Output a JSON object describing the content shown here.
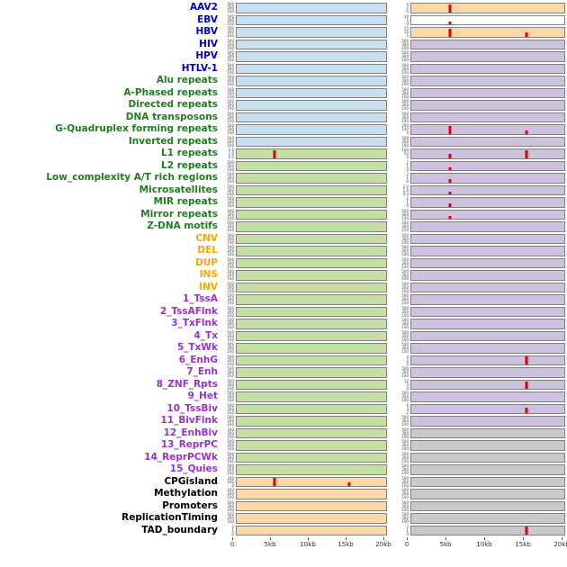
{
  "chart_data": {
    "type": "multitrack-density",
    "description": "Two columns of per-annotation signal tracks over a 0-20kb genomic window; red spikes mark enrichment peaks",
    "x_ticks": [
      "0",
      "5kb",
      "10kb",
      "15kb",
      "20kb"
    ],
    "x_max_kb": 20,
    "default_yticks": [
      "500",
      "300",
      "100"
    ],
    "colors": {
      "spike": "#e00000",
      "bg": {
        "blue": "#c7dfee",
        "green": "#c3dfa3",
        "orange": "#fcd8a8",
        "purple": "#cdc1de",
        "gray": "#c9c9c9",
        "white": "#ffffff"
      },
      "label": {
        "blue": "#0000cc",
        "green": "#1e7d1e",
        "orange": "#ffa500",
        "purple": "#9932cc",
        "black": "#000000"
      }
    },
    "tracks": [
      {
        "label": "AAV2",
        "lc": "blue",
        "left": {
          "bg": "blue"
        },
        "right": {
          "bg": "orange",
          "yticks": [
            "4",
            "2",
            "0"
          ],
          "spikes": [
            {
              "kb": 5,
              "h": 0.92
            }
          ]
        }
      },
      {
        "label": "EBV",
        "lc": "blue",
        "left": {
          "bg": "blue"
        },
        "right": {
          "bg": "white",
          "yticks": [
            "10",
            "5",
            "0"
          ],
          "spikes": [
            {
              "kb": 5,
              "h": 0.3
            }
          ]
        }
      },
      {
        "label": "HBV",
        "lc": "blue",
        "left": {
          "bg": "blue"
        },
        "right": {
          "bg": "orange",
          "yticks": [
            "15",
            "10",
            "5"
          ],
          "spikes": [
            {
              "kb": 5,
              "h": 0.92
            },
            {
              "kb": 15,
              "h": 0.5
            }
          ]
        }
      },
      {
        "label": "HIV",
        "lc": "blue",
        "left": {
          "bg": "blue"
        },
        "right": {
          "bg": "purple"
        }
      },
      {
        "label": "HPV",
        "lc": "blue",
        "left": {
          "bg": "blue"
        },
        "right": {
          "bg": "purple"
        }
      },
      {
        "label": "HTLV-1",
        "lc": "blue",
        "left": {
          "bg": "blue"
        },
        "right": {
          "bg": "purple"
        }
      },
      {
        "label": "Alu repeats",
        "lc": "green",
        "left": {
          "bg": "blue"
        },
        "right": {
          "bg": "purple"
        }
      },
      {
        "label": "A-Phased repeats",
        "lc": "green",
        "left": {
          "bg": "blue"
        },
        "right": {
          "bg": "purple"
        }
      },
      {
        "label": "Directed repeats",
        "lc": "green",
        "left": {
          "bg": "blue"
        },
        "right": {
          "bg": "purple"
        }
      },
      {
        "label": "DNA transposons",
        "lc": "green",
        "left": {
          "bg": "blue"
        },
        "right": {
          "bg": "purple"
        }
      },
      {
        "label": "G-Quadruplex forming repeats",
        "lc": "green",
        "left": {
          "bg": "blue"
        },
        "right": {
          "bg": "purple",
          "yticks": [
            "200",
            "100",
            "0"
          ],
          "spikes": [
            {
              "kb": 5,
              "h": 0.85
            },
            {
              "kb": 15,
              "h": 0.4
            }
          ]
        }
      },
      {
        "label": "Inverted repeats",
        "lc": "green",
        "left": {
          "bg": "blue"
        },
        "right": {
          "bg": "purple"
        }
      },
      {
        "label": "L1 repeats",
        "lc": "green",
        "left": {
          "bg": "green",
          "yticks": [
            "2.0",
            "1.0",
            "0.0"
          ],
          "spikes": [
            {
              "kb": 5,
              "h": 0.9
            }
          ]
        },
        "right": {
          "bg": "purple",
          "yticks": [
            "100",
            "50",
            "0"
          ],
          "spikes": [
            {
              "kb": 5,
              "h": 0.45
            },
            {
              "kb": 15,
              "h": 0.85
            }
          ]
        }
      },
      {
        "label": "L2 repeats",
        "lc": "green",
        "left": {
          "bg": "green"
        },
        "right": {
          "bg": "purple",
          "yticks": [
            "2",
            "1",
            "0"
          ],
          "spikes": [
            {
              "kb": 5,
              "h": 0.35
            }
          ]
        }
      },
      {
        "label": "Low_complexity A/T rich regions",
        "lc": "green",
        "left": {
          "bg": "green"
        },
        "right": {
          "bg": "purple",
          "yticks": [
            "2",
            "1",
            "0"
          ],
          "spikes": [
            {
              "kb": 5,
              "h": 0.35
            }
          ]
        }
      },
      {
        "label": "Microsatellites",
        "lc": "green",
        "left": {
          "bg": "green"
        },
        "right": {
          "bg": "purple",
          "yticks": [
            "2.0",
            "1.0",
            "0.0"
          ],
          "spikes": [
            {
              "kb": 5,
              "h": 0.3
            }
          ]
        }
      },
      {
        "label": "MIR repeats",
        "lc": "green",
        "left": {
          "bg": "green"
        },
        "right": {
          "bg": "purple",
          "yticks": [
            "2",
            "1",
            "0"
          ],
          "spikes": [
            {
              "kb": 5,
              "h": 0.35
            }
          ]
        }
      },
      {
        "label": "Mirror repeats",
        "lc": "green",
        "left": {
          "bg": "green"
        },
        "right": {
          "bg": "purple",
          "spikes": [
            {
              "kb": 5,
              "h": 0.3
            }
          ]
        }
      },
      {
        "label": "Z-DNA motifs",
        "lc": "green",
        "left": {
          "bg": "green"
        },
        "right": {
          "bg": "purple"
        }
      },
      {
        "label": "CNV",
        "lc": "orange",
        "left": {
          "bg": "green"
        },
        "right": {
          "bg": "purple"
        }
      },
      {
        "label": "DEL",
        "lc": "orange",
        "left": {
          "bg": "green"
        },
        "right": {
          "bg": "purple"
        }
      },
      {
        "label": "DUP",
        "lc": "orange",
        "left": {
          "bg": "green"
        },
        "right": {
          "bg": "purple"
        }
      },
      {
        "label": "INS",
        "lc": "orange",
        "left": {
          "bg": "green"
        },
        "right": {
          "bg": "purple"
        }
      },
      {
        "label": "INV",
        "lc": "orange",
        "left": {
          "bg": "green"
        },
        "right": {
          "bg": "purple"
        }
      },
      {
        "label": "1_TssA",
        "lc": "purple",
        "left": {
          "bg": "green"
        },
        "right": {
          "bg": "purple"
        }
      },
      {
        "label": "2_TssAFlnk",
        "lc": "purple",
        "left": {
          "bg": "green"
        },
        "right": {
          "bg": "purple"
        }
      },
      {
        "label": "3_TxFlnk",
        "lc": "purple",
        "left": {
          "bg": "green"
        },
        "right": {
          "bg": "purple"
        }
      },
      {
        "label": "4_Tx",
        "lc": "purple",
        "left": {
          "bg": "green"
        },
        "right": {
          "bg": "purple"
        }
      },
      {
        "label": "5_TxWk",
        "lc": "purple",
        "left": {
          "bg": "green"
        },
        "right": {
          "bg": "purple"
        }
      },
      {
        "label": "6_EnhG",
        "lc": "purple",
        "left": {
          "bg": "green"
        },
        "right": {
          "bg": "purple",
          "yticks": [
            "4",
            "2",
            "0"
          ],
          "spikes": [
            {
              "kb": 15,
              "h": 0.9
            }
          ]
        }
      },
      {
        "label": "7_Enh",
        "lc": "purple",
        "left": {
          "bg": "green"
        },
        "right": {
          "bg": "purple"
        }
      },
      {
        "label": "8_ZNF_Rpts",
        "lc": "purple",
        "left": {
          "bg": "green"
        },
        "right": {
          "bg": "purple",
          "yticks": [
            "10",
            "5",
            "0"
          ],
          "spikes": [
            {
              "kb": 15,
              "h": 0.85
            }
          ]
        }
      },
      {
        "label": "9_Het",
        "lc": "purple",
        "left": {
          "bg": "green"
        },
        "right": {
          "bg": "purple"
        }
      },
      {
        "label": "10_TssBiv",
        "lc": "purple",
        "left": {
          "bg": "green"
        },
        "right": {
          "bg": "purple",
          "yticks": [
            "6",
            "4",
            "2"
          ],
          "spikes": [
            {
              "kb": 15,
              "h": 0.6
            }
          ]
        }
      },
      {
        "label": "11_BivFlnk",
        "lc": "purple",
        "left": {
          "bg": "green"
        },
        "right": {
          "bg": "purple"
        }
      },
      {
        "label": "12_EnhBiv",
        "lc": "purple",
        "left": {
          "bg": "green"
        },
        "right": {
          "bg": "gray"
        }
      },
      {
        "label": "13_ReprPC",
        "lc": "purple",
        "left": {
          "bg": "green"
        },
        "right": {
          "bg": "gray"
        }
      },
      {
        "label": "14_ReprPCWk",
        "lc": "purple",
        "left": {
          "bg": "green"
        },
        "right": {
          "bg": "gray"
        }
      },
      {
        "label": "15_Quies",
        "lc": "purple",
        "left": {
          "bg": "green"
        },
        "right": {
          "bg": "gray"
        }
      },
      {
        "label": "CPGisland",
        "lc": "black",
        "left": {
          "bg": "orange",
          "yticks": [
            "200",
            "100",
            "0"
          ],
          "spikes": [
            {
              "kb": 5,
              "h": 0.95
            },
            {
              "kb": 15,
              "h": 0.4
            }
          ]
        },
        "right": {
          "bg": "gray"
        }
      },
      {
        "label": "Methylation",
        "lc": "black",
        "left": {
          "bg": "orange"
        },
        "right": {
          "bg": "gray"
        }
      },
      {
        "label": "Promoters",
        "lc": "black",
        "left": {
          "bg": "orange"
        },
        "right": {
          "bg": "gray"
        }
      },
      {
        "label": "ReplicationTiming",
        "lc": "black",
        "left": {
          "bg": "orange"
        },
        "right": {
          "bg": "gray"
        }
      },
      {
        "label": "TAD_boundary",
        "lc": "black",
        "left": {
          "bg": "orange",
          "yticks": [
            "2",
            "1",
            "0"
          ]
        },
        "right": {
          "bg": "gray",
          "yticks": [
            "2",
            "1",
            "0"
          ],
          "spikes": [
            {
              "kb": 15,
              "h": 0.9
            }
          ]
        }
      }
    ]
  }
}
